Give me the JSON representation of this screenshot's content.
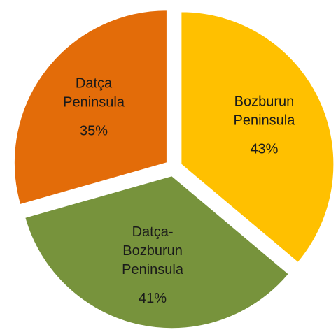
{
  "chart_data": {
    "type": "pie",
    "categories": [
      "Bozburun Peninsula",
      "Datça-Bozburun Peninsula",
      "Datça Peninsula"
    ],
    "values": [
      43,
      41,
      35
    ],
    "value_labels": [
      "43%",
      "41%",
      "35%"
    ],
    "colors": [
      "#FFC000",
      "#77933C",
      "#E36C09"
    ]
  }
}
